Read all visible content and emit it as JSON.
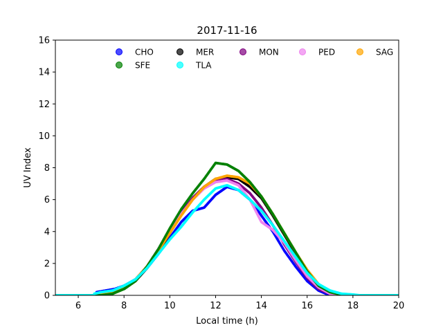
{
  "chart_data": {
    "type": "scatter",
    "title": "2017-11-16",
    "xlabel": "Local time (h)",
    "ylabel": "UV Index",
    "xlim": [
      5,
      20
    ],
    "ylim": [
      0,
      16
    ],
    "xticks": [
      6,
      8,
      10,
      12,
      14,
      16,
      18,
      20
    ],
    "yticks": [
      0,
      2,
      4,
      6,
      8,
      10,
      12,
      14,
      16
    ],
    "grid": false,
    "legend_position": "top",
    "legend_columns": 5,
    "series": [
      {
        "name": "CHO",
        "color": "#0000ff",
        "x": [
          6.8,
          7.2,
          7.6,
          8.0,
          8.5,
          9.0,
          9.5,
          10.0,
          10.5,
          11.0,
          11.5,
          12.0,
          12.5,
          13.0,
          13.5,
          14.0,
          14.5,
          15.0,
          15.5,
          16.0,
          16.5,
          17.0
        ],
        "y": [
          0.2,
          0.3,
          0.4,
          0.6,
          1.0,
          1.7,
          2.6,
          3.6,
          4.6,
          5.3,
          5.5,
          6.3,
          6.8,
          6.6,
          6.0,
          5.0,
          4.0,
          2.8,
          1.8,
          0.9,
          0.3,
          0.0
        ]
      },
      {
        "name": "MER",
        "color": "#000000",
        "x": [
          6.8,
          7.5,
          8.0,
          8.5,
          9.0,
          9.5,
          10.0,
          10.5,
          11.0,
          11.5,
          12.0,
          12.5,
          13.0,
          13.5,
          14.0,
          14.5,
          15.0,
          15.5,
          16.0,
          16.5,
          17.0,
          17.5,
          18.0
        ],
        "y": [
          0.0,
          0.2,
          0.4,
          0.9,
          1.7,
          2.7,
          3.9,
          5.1,
          6.1,
          6.8,
          7.3,
          7.4,
          7.3,
          6.8,
          6.1,
          5.0,
          3.8,
          2.6,
          1.5,
          0.6,
          0.2,
          0.05,
          0.0
        ]
      },
      {
        "name": "MON",
        "color": "#800080",
        "x": [
          6.8,
          7.5,
          8.0,
          8.5,
          9.0,
          9.5,
          10.0,
          10.5,
          11.0,
          11.5,
          12.0,
          12.5,
          13.0,
          13.5,
          14.0,
          14.5,
          15.0,
          15.5,
          16.0,
          16.5,
          17.0,
          17.5
        ],
        "y": [
          0.0,
          0.2,
          0.5,
          1.0,
          1.8,
          2.9,
          4.1,
          5.2,
          6.1,
          6.8,
          7.2,
          7.3,
          7.0,
          6.4,
          5.5,
          4.4,
          3.2,
          2.1,
          1.1,
          0.4,
          0.1,
          0.0
        ]
      },
      {
        "name": "PED",
        "color": "#ee82ee",
        "x": [
          6.8,
          7.5,
          8.0,
          8.5,
          9.0,
          9.5,
          10.0,
          10.5,
          11.0,
          11.5,
          12.0,
          12.5,
          13.0,
          13.5,
          14.0,
          14.5,
          15.0,
          15.5,
          16.0,
          16.5,
          17.0,
          17.5
        ],
        "y": [
          0.0,
          0.2,
          0.5,
          1.0,
          1.8,
          2.9,
          4.0,
          5.1,
          6.0,
          6.7,
          7.1,
          7.2,
          6.9,
          6.0,
          4.6,
          4.1,
          3.3,
          2.2,
          1.2,
          0.5,
          0.1,
          0.0
        ]
      },
      {
        "name": "SAG",
        "color": "#ffa500",
        "x": [
          6.8,
          7.5,
          8.0,
          8.5,
          9.0,
          9.5,
          10.0,
          10.5,
          11.0,
          11.5,
          12.0,
          12.5,
          13.0,
          13.5,
          14.0,
          14.5,
          15.0,
          15.5,
          16.0,
          16.5,
          17.0,
          17.5,
          18.0
        ],
        "y": [
          0.0,
          0.2,
          0.5,
          1.0,
          1.8,
          2.8,
          3.9,
          5.0,
          6.0,
          6.8,
          7.3,
          7.5,
          7.4,
          7.0,
          6.2,
          5.1,
          3.9,
          2.7,
          1.6,
          0.7,
          0.2,
          0.05,
          0.0
        ]
      },
      {
        "name": "SFE",
        "color": "#008000",
        "x": [
          7.0,
          7.5,
          8.0,
          8.5,
          9.0,
          9.5,
          10.0,
          10.5,
          11.0,
          11.5,
          12.0,
          12.5,
          13.0,
          13.5,
          14.0,
          14.5,
          15.0,
          15.5,
          16.0,
          16.5,
          17.0,
          17.5,
          18.0
        ],
        "y": [
          0.0,
          0.1,
          0.4,
          0.9,
          1.8,
          2.9,
          4.2,
          5.4,
          6.4,
          7.3,
          8.3,
          8.2,
          7.8,
          7.1,
          6.2,
          5.1,
          3.9,
          2.7,
          1.5,
          0.6,
          0.2,
          0.05,
          0.0
        ]
      },
      {
        "name": "TLA",
        "color": "#00ffff",
        "x": [
          6.7,
          7.0,
          7.5,
          8.0,
          8.5,
          9.0,
          9.5,
          10.0,
          10.5,
          11.0,
          11.5,
          12.0,
          12.5,
          13.0,
          13.5,
          14.0,
          14.5,
          15.0,
          15.5,
          16.0,
          16.5,
          17.0,
          17.5,
          18.0,
          18.3
        ],
        "y": [
          0.1,
          0.2,
          0.3,
          0.6,
          1.0,
          1.7,
          2.6,
          3.5,
          4.3,
          5.2,
          6.0,
          6.7,
          6.9,
          6.6,
          6.0,
          5.3,
          4.4,
          3.4,
          2.4,
          1.4,
          0.7,
          0.3,
          0.1,
          0.05,
          0.0
        ]
      }
    ]
  }
}
